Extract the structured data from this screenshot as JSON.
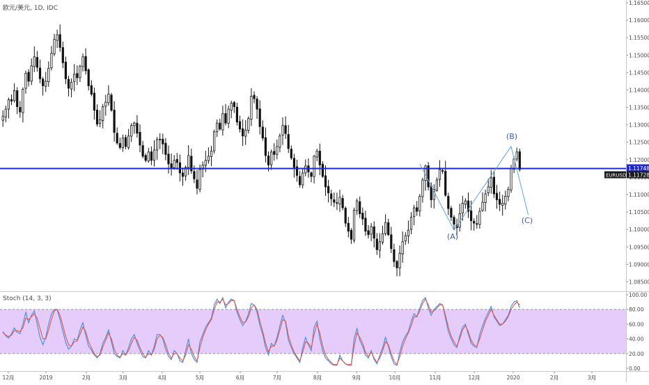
{
  "header": {
    "title": "欧元/美元, 1D, IDC"
  },
  "stoch_panel": {
    "label": "Stoch (14, 3, 3)"
  },
  "chart_data": [
    {
      "type": "candlestick",
      "title": "欧元/美元, 1D, IDC",
      "symbol": "EURUSD",
      "price_axis": {
        "ticks": [
          "1.16500",
          "1.16000",
          "1.15500",
          "1.15000",
          "1.14500",
          "1.14000",
          "1.13500",
          "1.13000",
          "1.12500",
          "1.12000",
          "1.11500",
          "1.11000",
          "1.10500",
          "1.10000",
          "1.09500",
          "1.09000",
          "1.08500"
        ],
        "ylim": [
          1.0825,
          1.165
        ]
      },
      "time_axis": {
        "ticks": [
          "12月",
          "2019",
          "2月",
          "3月",
          "4月",
          "5月",
          "6月",
          "7月",
          "8月",
          "9月",
          "10月",
          "11月",
          "12月",
          "2020",
          "2月",
          "3月"
        ]
      },
      "horizontal_line": {
        "value": 1.11748,
        "label": "1.11748",
        "color": "#1f26d6"
      },
      "last_price": {
        "value": 1.11728,
        "label": "1.11728",
        "symbol": "EURUSD"
      },
      "closes": [
        1.1325,
        1.1345,
        1.1372,
        1.1368,
        1.1398,
        1.1352,
        1.1337,
        1.1402,
        1.1448,
        1.1425,
        1.1469,
        1.1495,
        1.1465,
        1.1432,
        1.1412,
        1.1425,
        1.1462,
        1.1505,
        1.1545,
        1.1558,
        1.1522,
        1.1478,
        1.1432,
        1.1405,
        1.1422,
        1.1445,
        1.1435,
        1.1468,
        1.1495,
        1.1455,
        1.1412,
        1.1388,
        1.1342,
        1.1302,
        1.1315,
        1.1352,
        1.1365,
        1.1388,
        1.1342,
        1.1278,
        1.1248,
        1.1235,
        1.1262,
        1.1238,
        1.1268,
        1.1298,
        1.1305,
        1.1276,
        1.1242,
        1.121,
        1.1198,
        1.1222,
        1.1198,
        1.1228,
        1.1258,
        1.1258,
        1.1245,
        1.1215,
        1.1188,
        1.1175,
        1.1198,
        1.1192,
        1.1162,
        1.1152,
        1.1178,
        1.1212,
        1.1168,
        1.1145,
        1.1118,
        1.1172,
        1.1185,
        1.1198,
        1.121,
        1.1225,
        1.128,
        1.1305,
        1.1288,
        1.1332,
        1.1305,
        1.1345,
        1.1362,
        1.1352,
        1.1308,
        1.1288,
        1.1268,
        1.1285,
        1.1318,
        1.1382,
        1.1375,
        1.1345,
        1.1295,
        1.1262,
        1.1212,
        1.1185,
        1.1222,
        1.1215,
        1.1238,
        1.1268,
        1.1298,
        1.1275,
        1.1232,
        1.1205,
        1.1178,
        1.1155,
        1.1128,
        1.1162,
        1.1182,
        1.1165,
        1.1152,
        1.121,
        1.1225,
        1.1185,
        1.1152,
        1.1122,
        1.1105,
        1.1088,
        1.1078,
        1.1075,
        1.1092,
        1.1062,
        1.1018,
        1.0995,
        1.0972,
        1.1055,
        1.1082,
        1.1045,
        1.103,
        1.0995,
        1.0985,
        1.1008,
        1.0975,
        1.0942,
        1.0965,
        1.0988,
        1.102,
        1.0985,
        1.0945,
        1.0908,
        1.089,
        1.0932,
        1.0965,
        1.0982,
        1.0998,
        1.1035,
        1.1062,
        1.1052,
        1.1095,
        1.1142,
        1.1182,
        1.1122,
        1.1085,
        1.1115,
        1.1142,
        1.1172,
        1.1168,
        1.1098,
        1.106,
        1.1035,
        1.1015,
        1.1005,
        1.1045,
        1.1075,
        1.1082,
        1.1052,
        1.1025,
        1.1018,
        1.1015,
        1.1052,
        1.1078,
        1.1102,
        1.1122,
        1.1148,
        1.1102,
        1.1085,
        1.1072,
        1.1075,
        1.1095,
        1.1115,
        1.1175,
        1.1202,
        1.1222,
        1.1172
      ]
    },
    {
      "type": "line",
      "title": "Stoch (14, 3, 3)",
      "ylim": [
        0,
        100
      ],
      "ticks": [
        "100.00",
        "80.00",
        "60.00",
        "40.00",
        "20.00",
        "0.00"
      ],
      "band": [
        20,
        80
      ],
      "series": [
        {
          "color": "#3f8de0",
          "values": [
            50,
            44,
            41,
            47,
            55,
            49,
            47,
            60,
            76,
            62,
            72,
            78,
            60,
            42,
            32,
            42,
            60,
            74,
            80,
            80,
            66,
            50,
            35,
            26,
            30,
            40,
            38,
            52,
            62,
            45,
            30,
            25,
            18,
            14,
            20,
            34,
            42,
            52,
            36,
            20,
            16,
            14,
            24,
            18,
            28,
            40,
            46,
            34,
            24,
            16,
            14,
            24,
            18,
            30,
            46,
            46,
            40,
            26,
            16,
            12,
            24,
            20,
            10,
            8,
            24,
            40,
            20,
            12,
            8,
            36,
            46,
            56,
            62,
            68,
            86,
            94,
            88,
            96,
            82,
            90,
            94,
            92,
            76,
            66,
            58,
            64,
            74,
            88,
            86,
            76,
            58,
            46,
            28,
            18,
            34,
            30,
            42,
            58,
            72,
            62,
            38,
            28,
            20,
            14,
            8,
            28,
            42,
            32,
            24,
            56,
            64,
            40,
            24,
            14,
            10,
            6,
            4,
            4,
            18,
            10,
            6,
            4,
            4,
            40,
            54,
            38,
            30,
            18,
            14,
            24,
            12,
            6,
            18,
            28,
            42,
            30,
            16,
            6,
            4,
            22,
            36,
            44,
            50,
            64,
            74,
            70,
            82,
            92,
            96,
            82,
            72,
            80,
            84,
            88,
            86,
            68,
            50,
            40,
            32,
            28,
            44,
            56,
            60,
            46,
            34,
            30,
            28,
            46,
            58,
            68,
            76,
            84,
            70,
            64,
            58,
            60,
            66,
            72,
            84,
            90,
            92,
            82
          ]
        },
        {
          "color": "#e0564a",
          "values": [
            48,
            45,
            43,
            45,
            51,
            51,
            50,
            55,
            68,
            66,
            70,
            74,
            68,
            54,
            40,
            40,
            52,
            66,
            78,
            80,
            72,
            58,
            43,
            32,
            30,
            36,
            37,
            46,
            56,
            50,
            36,
            28,
            20,
            16,
            18,
            29,
            38,
            48,
            40,
            26,
            18,
            15,
            20,
            18,
            24,
            34,
            42,
            38,
            28,
            20,
            15,
            20,
            18,
            26,
            40,
            45,
            42,
            32,
            20,
            14,
            20,
            20,
            14,
            10,
            18,
            32,
            26,
            16,
            10,
            28,
            42,
            52,
            60,
            66,
            80,
            90,
            90,
            94,
            86,
            88,
            92,
            92,
            80,
            70,
            62,
            63,
            70,
            82,
            86,
            80,
            64,
            50,
            34,
            22,
            30,
            30,
            38,
            52,
            66,
            64,
            44,
            32,
            22,
            16,
            10,
            22,
            36,
            34,
            28,
            46,
            60,
            48,
            30,
            18,
            12,
            8,
            5,
            5,
            14,
            10,
            6,
            5,
            5,
            30,
            48,
            42,
            34,
            22,
            16,
            22,
            14,
            8,
            14,
            24,
            36,
            32,
            20,
            10,
            5,
            16,
            30,
            40,
            48,
            58,
            70,
            70,
            78,
            88,
            94,
            86,
            76,
            78,
            82,
            86,
            86,
            72,
            56,
            44,
            36,
            30,
            40,
            52,
            58,
            50,
            38,
            32,
            30,
            40,
            52,
            64,
            72,
            80,
            72,
            66,
            60,
            60,
            64,
            70,
            80,
            86,
            90,
            86
          ]
        }
      ]
    }
  ]
}
